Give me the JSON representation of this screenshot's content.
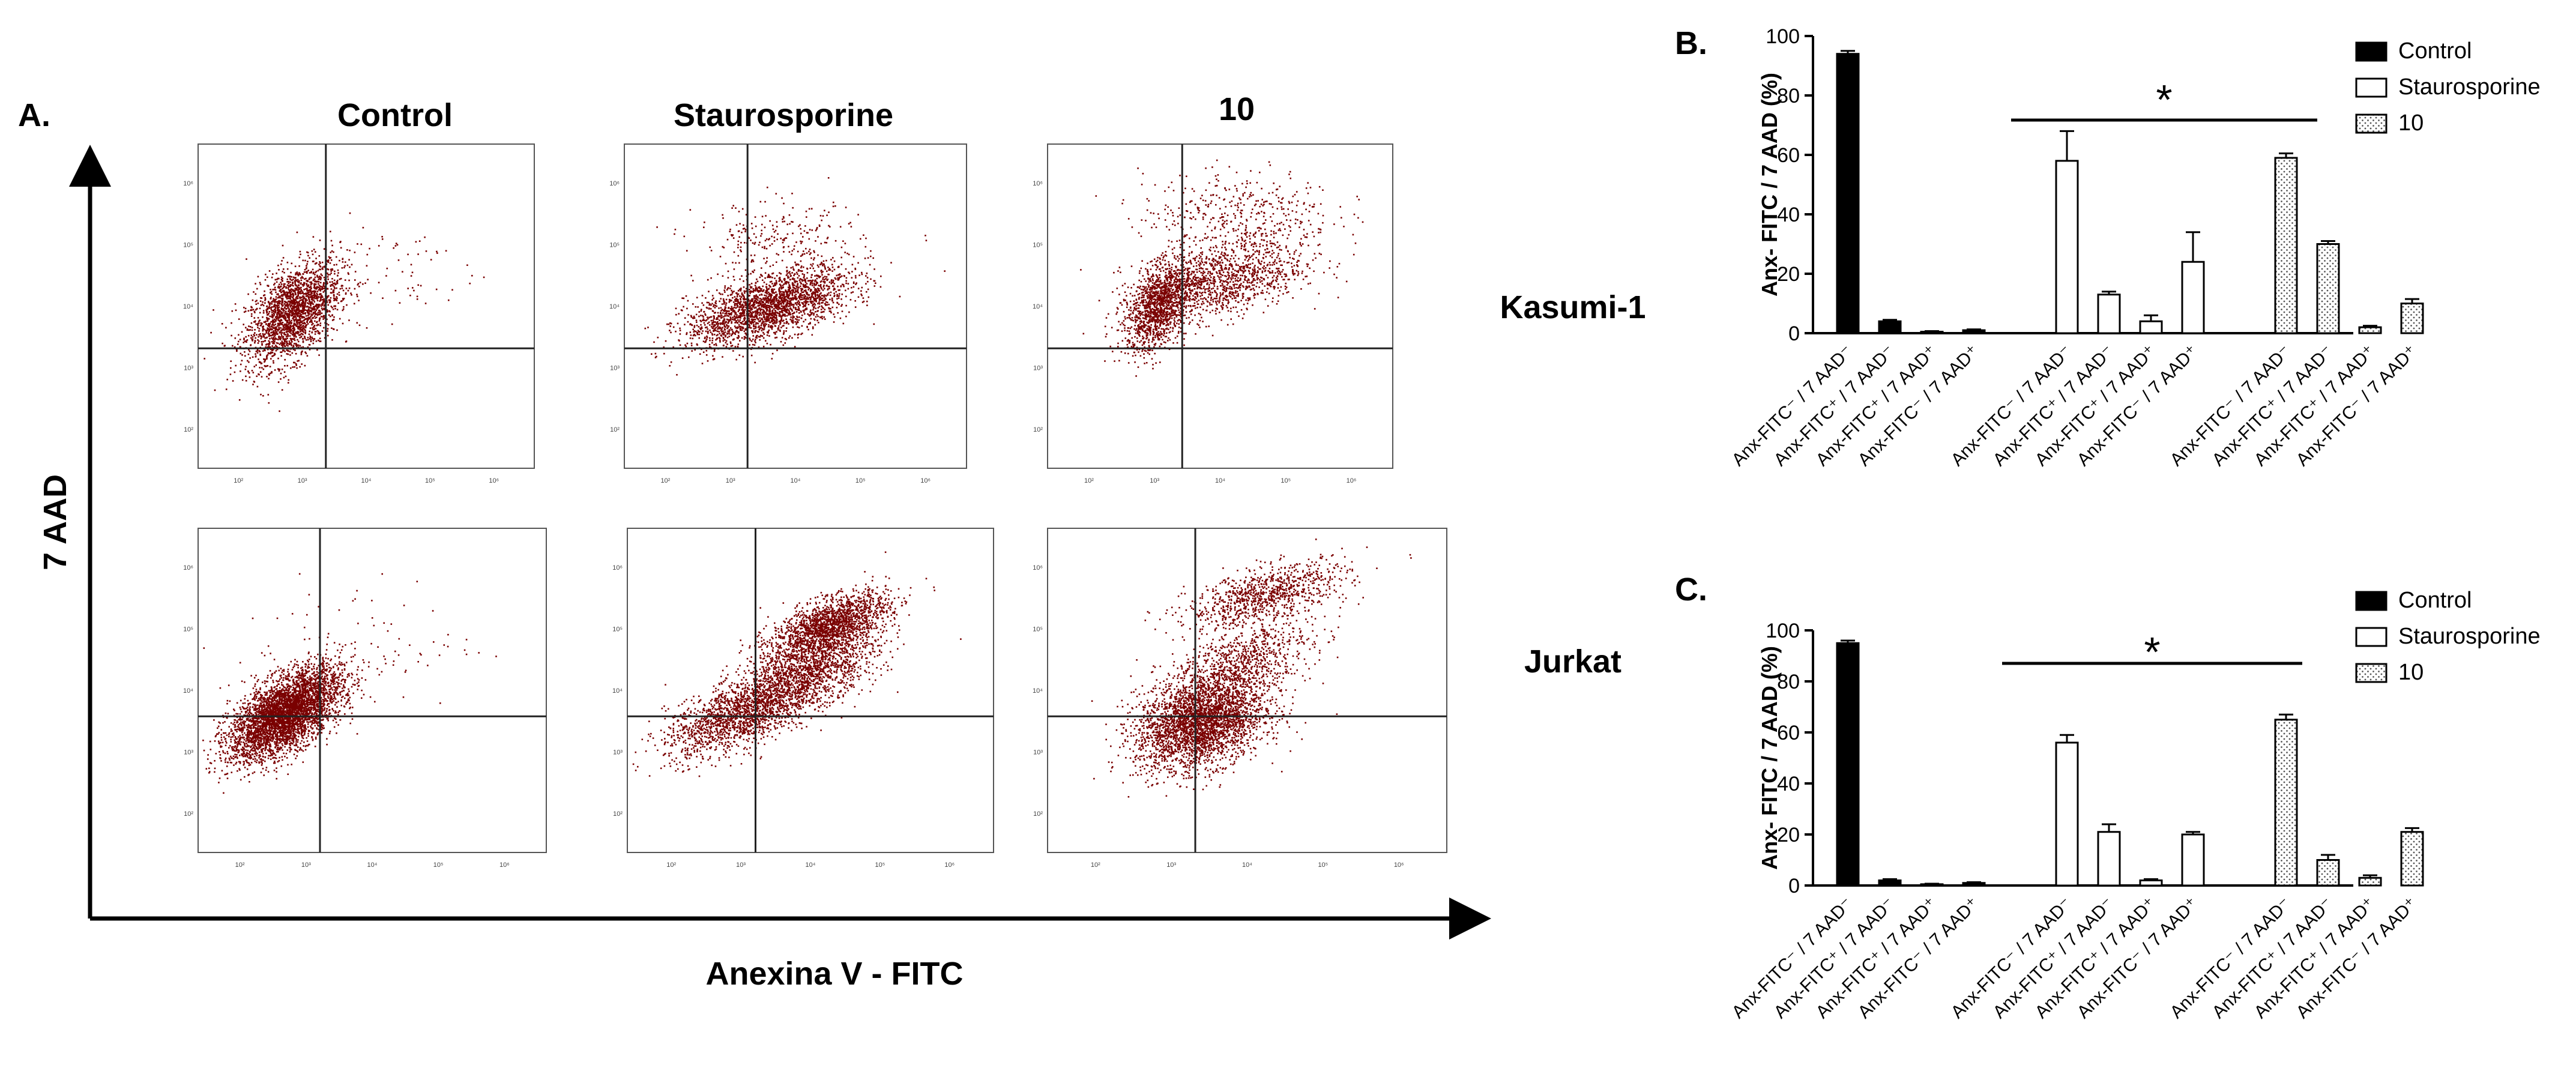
{
  "panel_a": {
    "letter": "A.",
    "column_headers": [
      "Control",
      "Staurosporine",
      "10"
    ],
    "row_labels": [
      "Kasumi-1",
      "Jurkat"
    ],
    "x_axis_label": "Anexina V - FITC",
    "y_axis_label": "7 AAD",
    "flow_tick_labels": [
      "10²",
      "10³",
      "10⁴",
      "10⁵",
      "10⁶"
    ],
    "dot_color": "#7a0000"
  },
  "chart_data": [
    {
      "type": "bar",
      "panel": "B.",
      "cell_line": "Kasumi-1",
      "ylabel": "Anx- FITC / 7 AAD (%)",
      "ylim": [
        0,
        100
      ],
      "yticks": [
        "0",
        "20",
        "40",
        "60",
        "80",
        "100"
      ],
      "significance": "*",
      "categories": [
        "Anx-FITC⁻ / 7 AAD⁻",
        "Anx-FITC⁺ / 7 AAD⁻",
        "Anx-FITC⁺ / 7 AAD⁺",
        "Anx-FITC⁻ / 7 AAD⁺"
      ],
      "series": [
        {
          "name": "Control",
          "pattern": "solid",
          "values": [
            94,
            4,
            0.5,
            1
          ],
          "errors": [
            1,
            0.5,
            0.2,
            0.3
          ]
        },
        {
          "name": "Staurosporine",
          "pattern": "open",
          "values": [
            58,
            13,
            4,
            24
          ],
          "errors": [
            10,
            1,
            2,
            10
          ]
        },
        {
          "name": "10",
          "pattern": "dotted",
          "values": [
            59,
            30,
            2,
            10
          ],
          "errors": [
            1.5,
            1,
            0.5,
            1.5
          ]
        }
      ]
    },
    {
      "type": "bar",
      "panel": "C.",
      "cell_line": "Jurkat",
      "ylabel": "Anx- FITC / 7 AAD (%)",
      "ylim": [
        0,
        100
      ],
      "yticks": [
        "0",
        "20",
        "40",
        "60",
        "80",
        "100"
      ],
      "significance": "*",
      "categories": [
        "Anx-FITC⁻ / 7 AAD⁻",
        "Anx-FITC⁺ / 7 AAD⁻",
        "Anx-FITC⁺ / 7 AAD⁺",
        "Anx-FITC⁻ / 7 AAD⁺"
      ],
      "series": [
        {
          "name": "Control",
          "pattern": "solid",
          "values": [
            95,
            2,
            0.5,
            1
          ],
          "errors": [
            1,
            0.5,
            0.2,
            0.3
          ]
        },
        {
          "name": "Staurosporine",
          "pattern": "open",
          "values": [
            56,
            21,
            2,
            20
          ],
          "errors": [
            3,
            3,
            0.5,
            1
          ]
        },
        {
          "name": "10",
          "pattern": "dotted",
          "values": [
            65,
            10,
            3,
            21
          ],
          "errors": [
            2,
            2,
            1,
            1.5
          ]
        }
      ]
    }
  ]
}
